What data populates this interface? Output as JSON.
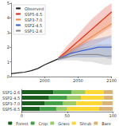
{
  "chart_data": [
    {
      "type": "line",
      "x": [
        1950,
        1960,
        1970,
        1980,
        1990,
        2000,
        2010,
        2020,
        2030,
        2040,
        2050,
        2060,
        2070,
        2080,
        2090,
        2100
      ],
      "xlim": [
        1950,
        2100
      ],
      "xticks": [
        2000,
        2050,
        2100
      ],
      "ylim": [
        0,
        5
      ],
      "yticks": [
        0,
        1,
        2,
        3,
        4,
        5
      ],
      "legend": "top-left",
      "series": [
        {
          "name": "Observed",
          "color": "#222222",
          "values": [
            0.2,
            0.25,
            0.3,
            0.4,
            0.55,
            0.8,
            1.0,
            1.2,
            null,
            null,
            null,
            null,
            null,
            null,
            null,
            null
          ]
        },
        {
          "name": "SSP5-8.5",
          "color": "#d7301f",
          "values": [
            null,
            null,
            null,
            null,
            null,
            null,
            null,
            1.2,
            1.6,
            2.0,
            2.4,
            2.8,
            3.2,
            3.6,
            4.0,
            4.4
          ],
          "lower": [
            null,
            null,
            null,
            null,
            null,
            null,
            null,
            1.1,
            1.3,
            1.6,
            1.9,
            2.2,
            2.5,
            2.8,
            3.1,
            3.4
          ],
          "upper": [
            null,
            null,
            null,
            null,
            null,
            null,
            null,
            1.3,
            1.9,
            2.4,
            2.9,
            3.4,
            3.9,
            4.3,
            4.7,
            5.0
          ]
        },
        {
          "name": "SSP3-7.0",
          "color": "#f08a4b",
          "values": [
            null,
            null,
            null,
            null,
            null,
            null,
            null,
            1.2,
            1.5,
            1.8,
            2.1,
            2.4,
            2.7,
            3.0,
            3.3,
            3.6
          ],
          "lower": [
            null,
            null,
            null,
            null,
            null,
            null,
            null,
            1.1,
            1.3,
            1.5,
            1.7,
            1.9,
            2.1,
            2.3,
            2.5,
            2.7
          ],
          "upper": [
            null,
            null,
            null,
            null,
            null,
            null,
            null,
            1.3,
            1.7,
            2.1,
            2.5,
            2.9,
            3.3,
            3.7,
            4.1,
            4.5
          ]
        },
        {
          "name": "SSP2-4.5",
          "color": "#3a5fcd",
          "values": [
            null,
            null,
            null,
            null,
            null,
            null,
            null,
            1.2,
            1.4,
            1.6,
            1.7,
            1.8,
            1.9,
            2.0,
            2.0,
            2.0
          ],
          "lower": [
            null,
            null,
            null,
            null,
            null,
            null,
            null,
            1.1,
            1.2,
            1.3,
            1.3,
            1.3,
            1.3,
            1.3,
            1.3,
            1.2
          ],
          "upper": [
            null,
            null,
            null,
            null,
            null,
            null,
            null,
            1.3,
            1.6,
            1.9,
            2.1,
            2.3,
            2.5,
            2.6,
            2.7,
            2.8
          ]
        },
        {
          "name": "SSP1-2.6",
          "color": "#8c8c8c",
          "values": [
            null,
            null,
            null,
            null,
            null,
            null,
            null,
            1.2,
            1.3,
            1.4,
            1.5,
            1.5,
            1.5,
            1.5,
            1.4,
            1.4
          ],
          "lower": [
            null,
            null,
            null,
            null,
            null,
            null,
            null,
            1.1,
            1.1,
            1.1,
            1.1,
            1.0,
            1.0,
            0.9,
            0.8,
            0.8
          ],
          "upper": [
            null,
            null,
            null,
            null,
            null,
            null,
            null,
            1.3,
            1.5,
            1.7,
            1.9,
            2.0,
            2.1,
            2.2,
            2.2,
            2.2
          ]
        }
      ]
    },
    {
      "type": "bar",
      "orientation": "horizontal",
      "stacked": true,
      "categories": [
        "SSP1-2.6",
        "SSP2-4.5",
        "SSP3-7.0",
        "SSP5-8.5"
      ],
      "xlim": [
        0,
        100
      ],
      "xticks": [
        0,
        50,
        100
      ],
      "legend": "bottom",
      "series": [
        {
          "name": "Forest",
          "color": "#1b5e20",
          "values": [
            35,
            30,
            25,
            20
          ]
        },
        {
          "name": "Crop",
          "color": "#43a047",
          "values": [
            20,
            20,
            20,
            18
          ]
        },
        {
          "name": "Grass",
          "color": "#9ccc65",
          "values": [
            15,
            15,
            15,
            12
          ]
        },
        {
          "name": "Shrub",
          "color": "#fdd835",
          "values": [
            20,
            25,
            28,
            35
          ]
        },
        {
          "name": "Bare",
          "color": "#d7b377",
          "values": [
            10,
            10,
            12,
            15
          ]
        }
      ]
    }
  ]
}
